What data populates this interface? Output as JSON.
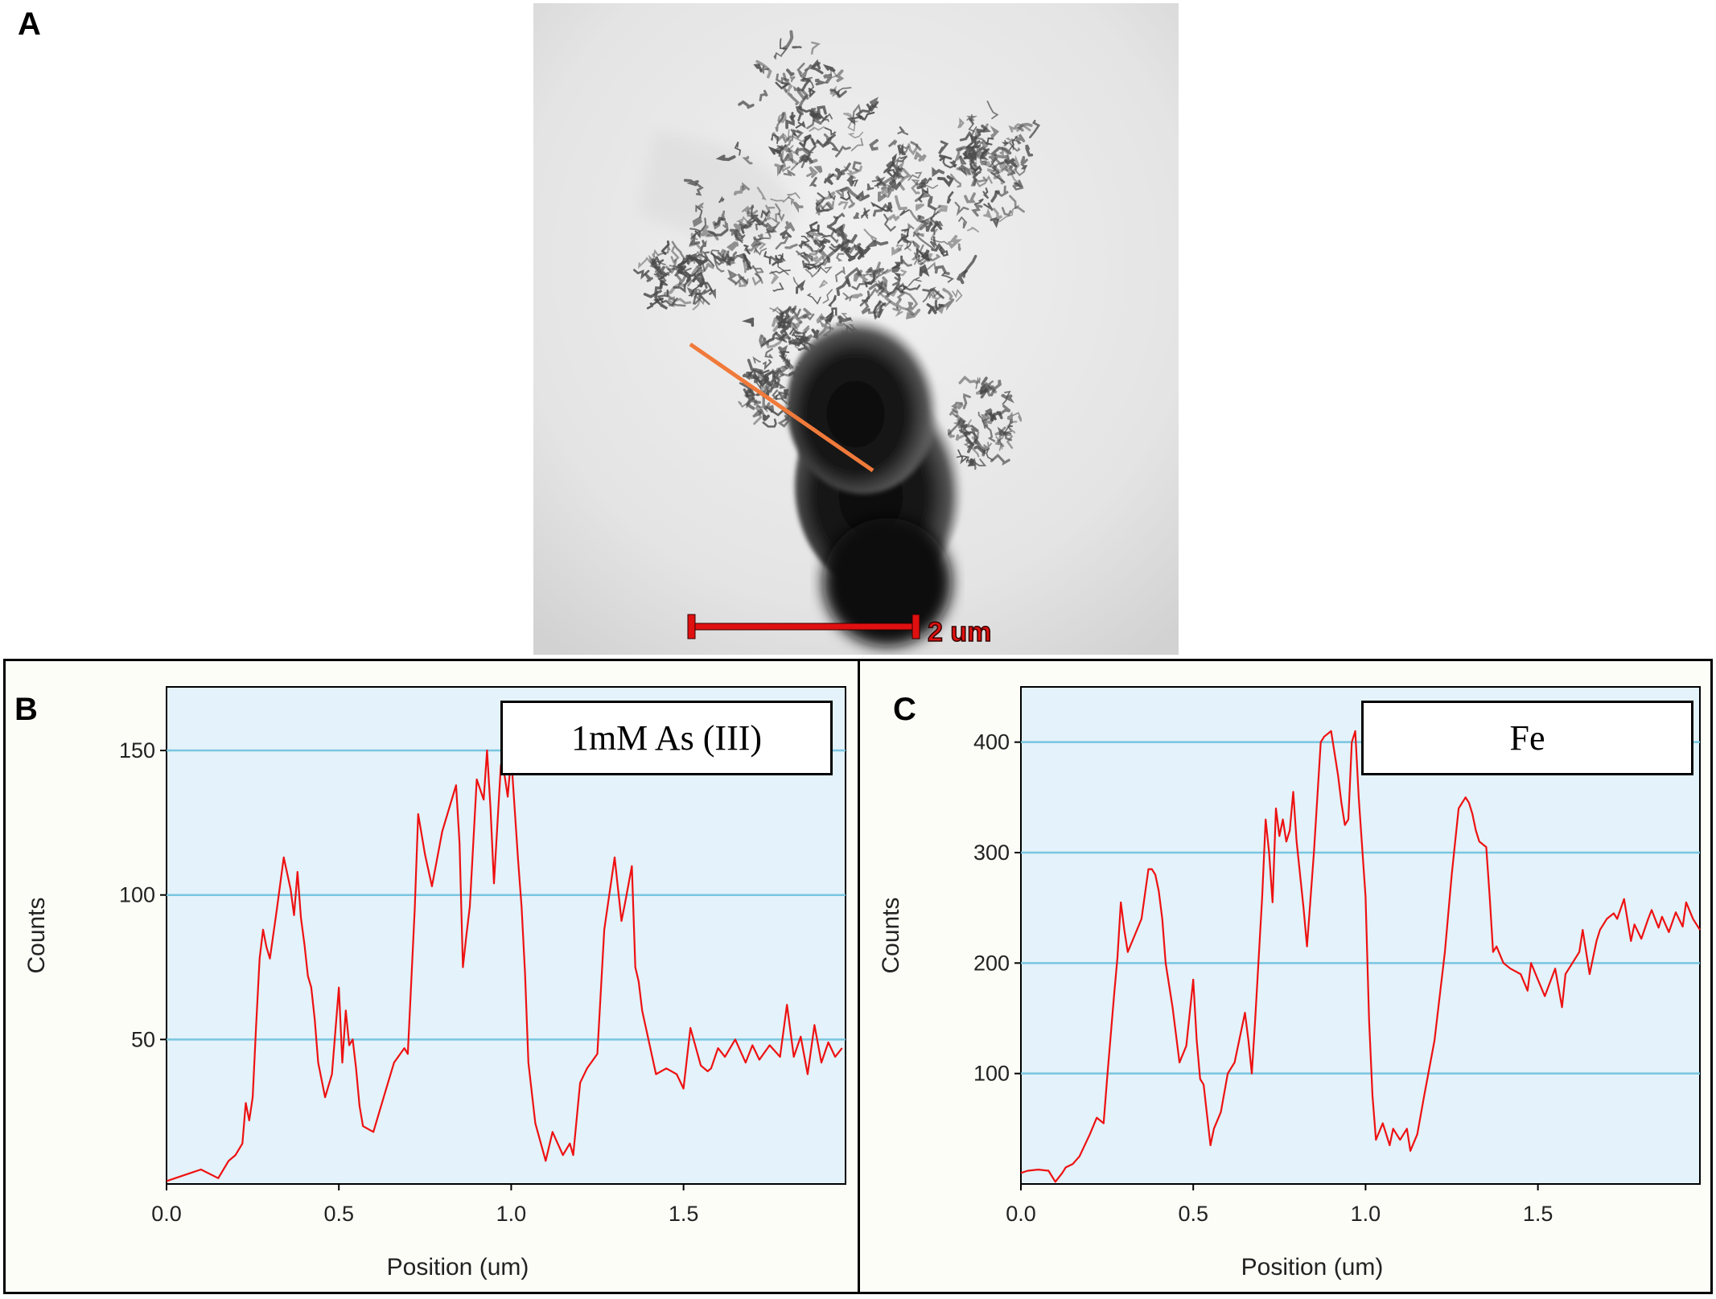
{
  "panels": {
    "a": {
      "letter": "A",
      "scale_bar_label": "2 um"
    },
    "b": {
      "letter": "B",
      "legend": "1mM As (III)"
    },
    "c": {
      "letter": "C",
      "legend": "Fe"
    }
  },
  "colors": {
    "plot_background": "#e3f2fb",
    "gridline": "#79c6e0",
    "series_line": "#ee1111",
    "scan_line": "#f07a3a",
    "scale_bar": "#e01010"
  },
  "chart_data": [
    {
      "type": "line",
      "title": "",
      "legend": "1mM As (III)",
      "xlabel": "Position (um)",
      "ylabel": "Counts",
      "xlim": [
        0,
        1.97
      ],
      "ylim": [
        0,
        172
      ],
      "xticks": [
        0.0,
        0.5,
        1.0,
        1.5
      ],
      "xtick_labels": [
        "0.0",
        "0.5",
        "1.0",
        "1.5"
      ],
      "yticks": [
        50,
        100,
        150
      ],
      "ytick_labels": [
        "50",
        "100",
        "150"
      ],
      "grid": "horizontal",
      "series": [
        {
          "x": [
            0.0,
            0.05,
            0.1,
            0.15,
            0.18,
            0.2,
            0.22,
            0.23,
            0.24,
            0.25,
            0.26,
            0.27,
            0.28,
            0.29,
            0.3,
            0.32,
            0.34,
            0.36,
            0.37,
            0.38,
            0.39,
            0.4,
            0.41,
            0.42,
            0.43,
            0.44,
            0.46,
            0.48,
            0.5,
            0.51,
            0.52,
            0.53,
            0.54,
            0.55,
            0.56,
            0.57,
            0.6,
            0.63,
            0.66,
            0.69,
            0.7,
            0.72,
            0.73,
            0.75,
            0.77,
            0.8,
            0.82,
            0.84,
            0.85,
            0.86,
            0.87,
            0.88,
            0.9,
            0.92,
            0.93,
            0.94,
            0.95,
            0.97,
            0.98,
            0.99,
            1.0,
            1.02,
            1.03,
            1.04,
            1.05,
            1.07,
            1.1,
            1.12,
            1.15,
            1.17,
            1.18,
            1.2,
            1.22,
            1.25,
            1.27,
            1.3,
            1.32,
            1.33,
            1.35,
            1.36,
            1.37,
            1.38,
            1.4,
            1.42,
            1.45,
            1.48,
            1.5,
            1.52,
            1.55,
            1.57,
            1.58,
            1.6,
            1.62,
            1.65,
            1.68,
            1.7,
            1.72,
            1.75,
            1.78,
            1.8,
            1.82,
            1.84,
            1.86,
            1.88,
            1.9,
            1.92,
            1.94,
            1.96
          ],
          "y": [
            1,
            3,
            5,
            2,
            8,
            10,
            14,
            28,
            22,
            30,
            55,
            78,
            88,
            82,
            78,
            95,
            113,
            102,
            93,
            108,
            92,
            83,
            72,
            68,
            57,
            42,
            30,
            38,
            68,
            42,
            60,
            48,
            50,
            40,
            27,
            20,
            18,
            30,
            42,
            47,
            45,
            95,
            128,
            114,
            103,
            122,
            130,
            138,
            118,
            75,
            86,
            96,
            140,
            133,
            150,
            130,
            104,
            145,
            142,
            134,
            148,
            112,
            96,
            73,
            42,
            21,
            8,
            18,
            10,
            14,
            10,
            35,
            40,
            45,
            88,
            113,
            91,
            97,
            110,
            75,
            70,
            60,
            49,
            38,
            40,
            38,
            33,
            54,
            41,
            39,
            40,
            47,
            44,
            50,
            42,
            48,
            43,
            48,
            44,
            62,
            44,
            51,
            38,
            55,
            42,
            49,
            44,
            47
          ]
        }
      ]
    },
    {
      "type": "line",
      "title": "",
      "legend": "Fe",
      "xlabel": "Position (um)",
      "ylabel": "Counts",
      "xlim": [
        0,
        1.97
      ],
      "ylim": [
        0,
        450
      ],
      "xticks": [
        0.0,
        0.5,
        1.0,
        1.5
      ],
      "xtick_labels": [
        "0.0",
        "0.5",
        "1.0",
        "1.5"
      ],
      "yticks": [
        100,
        200,
        300,
        400
      ],
      "ytick_labels": [
        "100",
        "200",
        "300",
        "400"
      ],
      "grid": "horizontal",
      "series": [
        {
          "x": [
            0.0,
            0.02,
            0.05,
            0.08,
            0.1,
            0.12,
            0.13,
            0.15,
            0.17,
            0.2,
            0.22,
            0.24,
            0.25,
            0.27,
            0.28,
            0.29,
            0.3,
            0.31,
            0.33,
            0.35,
            0.37,
            0.38,
            0.39,
            0.4,
            0.41,
            0.42,
            0.44,
            0.46,
            0.48,
            0.5,
            0.51,
            0.52,
            0.53,
            0.55,
            0.56,
            0.58,
            0.6,
            0.62,
            0.65,
            0.66,
            0.67,
            0.68,
            0.7,
            0.71,
            0.72,
            0.73,
            0.74,
            0.75,
            0.76,
            0.77,
            0.78,
            0.79,
            0.8,
            0.82,
            0.83,
            0.85,
            0.87,
            0.88,
            0.9,
            0.92,
            0.93,
            0.94,
            0.95,
            0.96,
            0.97,
            0.98,
            1.0,
            1.01,
            1.02,
            1.03,
            1.05,
            1.07,
            1.08,
            1.1,
            1.12,
            1.13,
            1.15,
            1.17,
            1.2,
            1.23,
            1.25,
            1.27,
            1.29,
            1.3,
            1.31,
            1.32,
            1.33,
            1.35,
            1.36,
            1.37,
            1.38,
            1.4,
            1.42,
            1.45,
            1.47,
            1.48,
            1.5,
            1.52,
            1.55,
            1.57,
            1.58,
            1.6,
            1.62,
            1.63,
            1.65,
            1.67,
            1.68,
            1.7,
            1.72,
            1.73,
            1.75,
            1.77,
            1.78,
            1.8,
            1.82,
            1.83,
            1.85,
            1.86,
            1.88,
            1.9,
            1.92,
            1.93,
            1.95,
            1.97
          ],
          "y": [
            10,
            12,
            13,
            12,
            2,
            10,
            15,
            18,
            25,
            45,
            60,
            55,
            95,
            170,
            205,
            255,
            230,
            210,
            225,
            240,
            285,
            285,
            280,
            265,
            240,
            200,
            160,
            110,
            125,
            185,
            130,
            95,
            90,
            35,
            50,
            65,
            100,
            110,
            155,
            130,
            100,
            150,
            260,
            330,
            300,
            255,
            340,
            315,
            330,
            310,
            320,
            355,
            310,
            250,
            215,
            300,
            400,
            405,
            410,
            370,
            345,
            325,
            330,
            400,
            410,
            350,
            260,
            150,
            80,
            40,
            55,
            35,
            50,
            40,
            50,
            30,
            45,
            80,
            130,
            210,
            280,
            340,
            350,
            345,
            335,
            320,
            310,
            305,
            260,
            210,
            215,
            200,
            195,
            190,
            175,
            200,
            185,
            170,
            195,
            160,
            190,
            200,
            210,
            230,
            190,
            220,
            230,
            240,
            245,
            240,
            258,
            220,
            235,
            222,
            240,
            248,
            232,
            242,
            228,
            246,
            233,
            255,
            240,
            230
          ]
        }
      ]
    }
  ]
}
